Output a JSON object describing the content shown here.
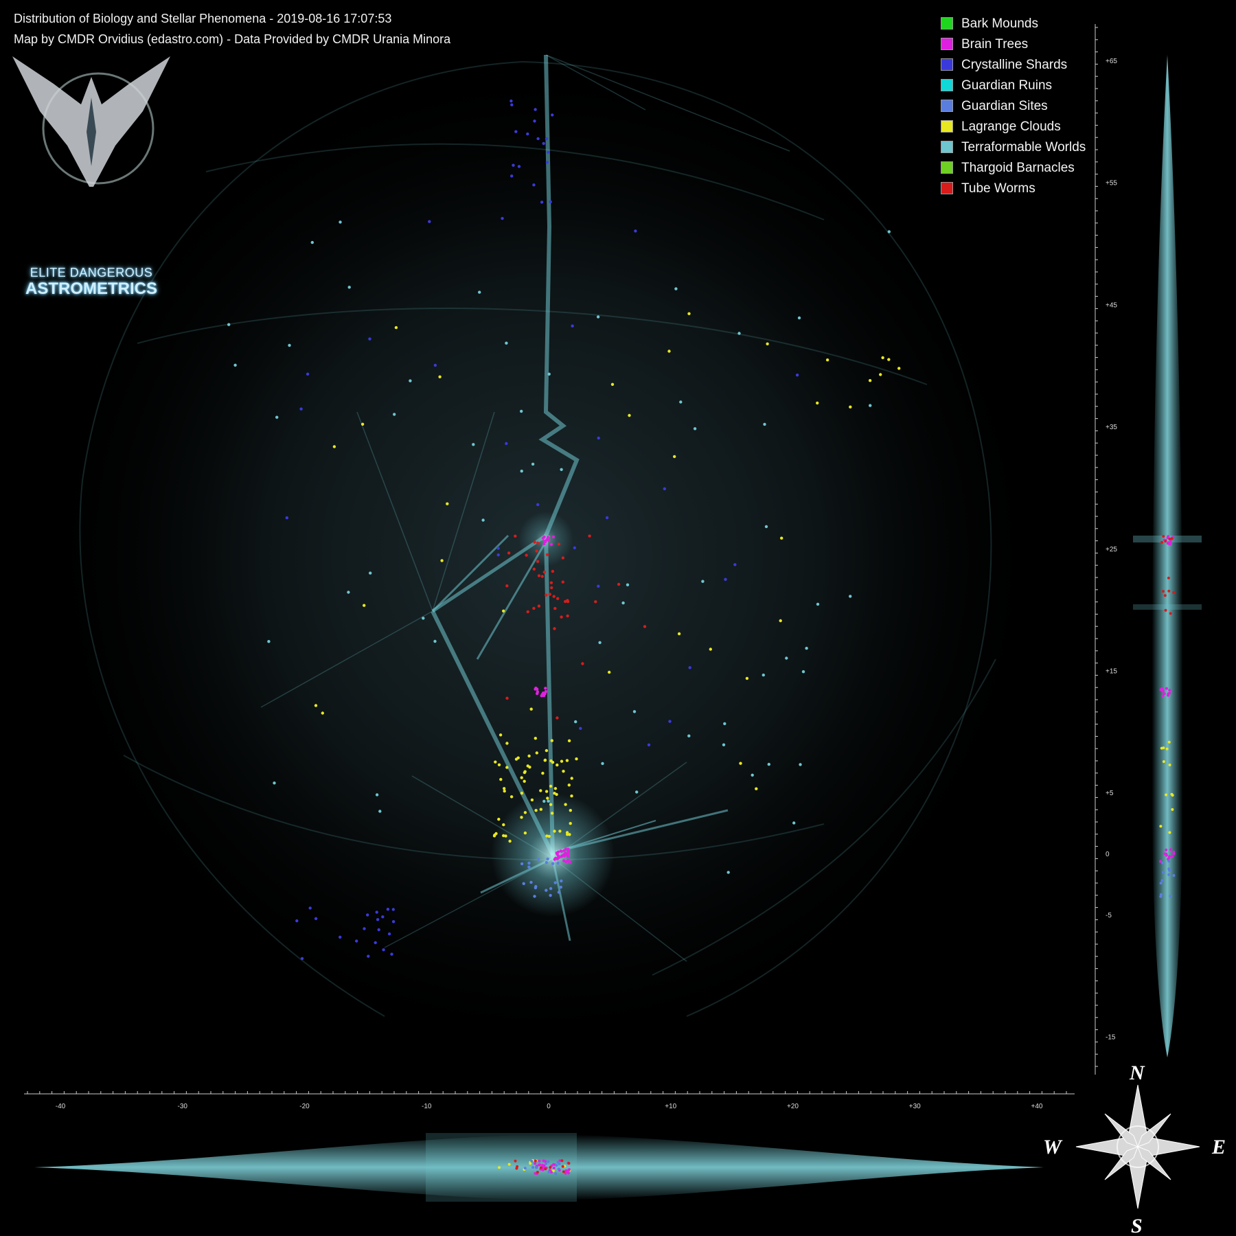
{
  "header": {
    "title": "Distribution of Biology and Stellar Phenomena - 2019-08-16 17:07:53",
    "credit": "Map by CMDR Orvidius (edastro.com) - Data Provided by CMDR Urania Minora"
  },
  "logo": {
    "line1": "ELITE DANGEROUS",
    "line2": "ASTROMETRICS"
  },
  "legend": [
    {
      "label": "Bark Mounds",
      "color": "#1fd61f"
    },
    {
      "label": "Brain Trees",
      "color": "#e020e0"
    },
    {
      "label": "Crystalline Shards",
      "color": "#3a3adc"
    },
    {
      "label": "Guardian Ruins",
      "color": "#10d8d8"
    },
    {
      "label": "Guardian Sites",
      "color": "#5a7ee0"
    },
    {
      "label": "Lagrange Clouds",
      "color": "#e8e820"
    },
    {
      "label": "Terraformable Worlds",
      "color": "#6fc6cf"
    },
    {
      "label": "Thargoid Barnacles",
      "color": "#6ed020"
    },
    {
      "label": "Tube Worms",
      "color": "#d81c1c"
    }
  ],
  "axes": {
    "x_ticks": [
      "-40",
      "-30",
      "-20",
      "-10",
      "0",
      "+10",
      "+20",
      "+30",
      "+40"
    ],
    "y_ticks": [
      "+65",
      "+55",
      "+45",
      "+35",
      "+25",
      "+15",
      "+5",
      "0",
      "-5",
      "-15"
    ]
  },
  "compass": {
    "n": "N",
    "s": "S",
    "e": "E",
    "w": "W"
  }
}
